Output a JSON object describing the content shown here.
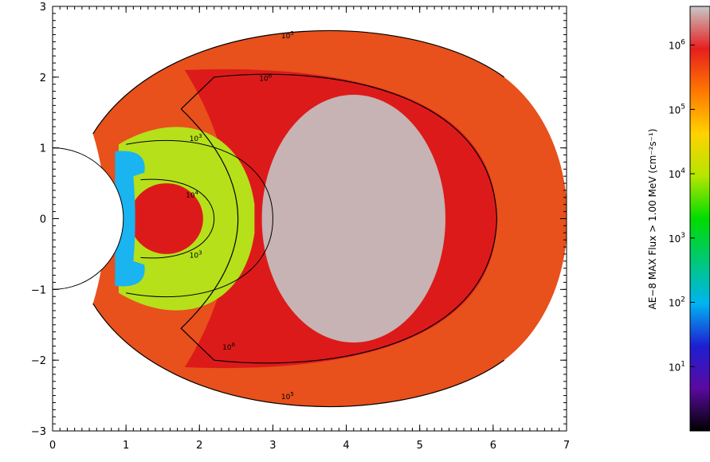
{
  "chart_data": [
    {
      "type": "heatmap",
      "title": "",
      "xlabel": "",
      "ylabel": "",
      "xlim": [
        0,
        7
      ],
      "ylim": [
        -3,
        3
      ],
      "x_ticks": [
        {
          "value": 0,
          "label": "0"
        },
        {
          "value": 1,
          "label": "1"
        },
        {
          "value": 2,
          "label": "2"
        },
        {
          "value": 3,
          "label": "3"
        },
        {
          "value": 4,
          "label": "4"
        },
        {
          "value": 5,
          "label": "5"
        },
        {
          "value": 6,
          "label": "6"
        },
        {
          "value": 7,
          "label": "7"
        }
      ],
      "y_ticks": [
        {
          "value": -3,
          "label": "−3"
        },
        {
          "value": -2,
          "label": "−2"
        },
        {
          "value": -1,
          "label": "−1"
        },
        {
          "value": 0,
          "label": "0"
        },
        {
          "value": 1,
          "label": "1"
        },
        {
          "value": 2,
          "label": "2"
        },
        {
          "value": 3,
          "label": "3"
        }
      ],
      "earth": {
        "center": [
          0,
          0
        ],
        "radius": 1
      },
      "contours": [
        {
          "level": "10^6",
          "base": "10",
          "exp": "6",
          "inner_x": 1.8,
          "outer_x": 6.05,
          "y_extent": 2.1,
          "color": "#000000"
        },
        {
          "level": "10^5",
          "base": "10",
          "exp": "5",
          "inner_x": 1.0,
          "outer_x": 7.0,
          "y_extent": 2.65,
          "color": "#000000"
        },
        {
          "level": "10^3",
          "base": "10",
          "exp": "3",
          "inner_x": 1.0,
          "outer_x": 3.0,
          "y_extent": 1.0,
          "color": "#000000"
        },
        {
          "level": "10^4",
          "base": "10",
          "exp": "4",
          "inner_x": 1.2,
          "outer_x": 2.2,
          "y_extent": 0.55,
          "color": "#000000"
        }
      ],
      "regions": [
        {
          "name": "outer-orange-belt",
          "color": "#e8501c"
        },
        {
          "name": "outer-red-belt",
          "color": "#dd1a1a"
        },
        {
          "name": "outer-peak-grey",
          "color": "#c4c4c4"
        },
        {
          "name": "slot-yellow-green",
          "color": "#b6e01a"
        },
        {
          "name": "inner-belt-red",
          "color": "#dd1a1a"
        },
        {
          "name": "earth-cyan-blue",
          "color": "#1ab4f0"
        }
      ]
    },
    {
      "type": "colorbar",
      "label": "AE−8 MAX Flux > 1.00 MeV (cm⁻²s⁻¹)",
      "scale": "log",
      "range": [
        1,
        4000000
      ],
      "ticks": [
        {
          "value": 10,
          "base": "10",
          "exp": "1"
        },
        {
          "value": 100,
          "base": "10",
          "exp": "2"
        },
        {
          "value": 1000,
          "base": "10",
          "exp": "3"
        },
        {
          "value": 10000,
          "base": "10",
          "exp": "4"
        },
        {
          "value": 100000,
          "base": "10",
          "exp": "5"
        },
        {
          "value": 1000000,
          "base": "10",
          "exp": "6"
        }
      ],
      "colormap": [
        "#000000",
        "#5a0aa0",
        "#1e1ed2",
        "#00b4f0",
        "#00c878",
        "#00dc00",
        "#b4e600",
        "#ffd200",
        "#ff7800",
        "#e61e1e",
        "#c8c8c8"
      ]
    }
  ]
}
